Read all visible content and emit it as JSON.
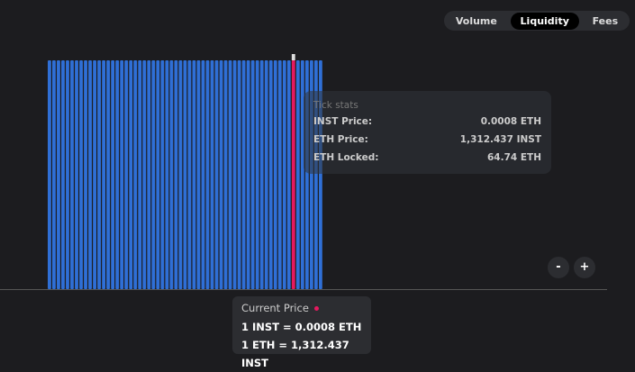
{
  "tabs": [
    "Volume",
    "Liquidity",
    "Fees"
  ],
  "active_tab": "Liquidity",
  "tooltip": {
    "title": "Tick stats",
    "rows": [
      {
        "label": "INST Price:",
        "value": "0.0008 ETH"
      },
      {
        "label": "ETH Price:",
        "value": "1,312.437 INST"
      },
      {
        "label": "ETH Locked:",
        "value": "64.74 ETH"
      }
    ]
  },
  "current_price": {
    "title": "Current Price",
    "lines": [
      "1 INST = 0.0008 ETH",
      "1 ETH = 1,312.437 INST"
    ]
  },
  "zoom": [
    "-",
    "+"
  ]
}
